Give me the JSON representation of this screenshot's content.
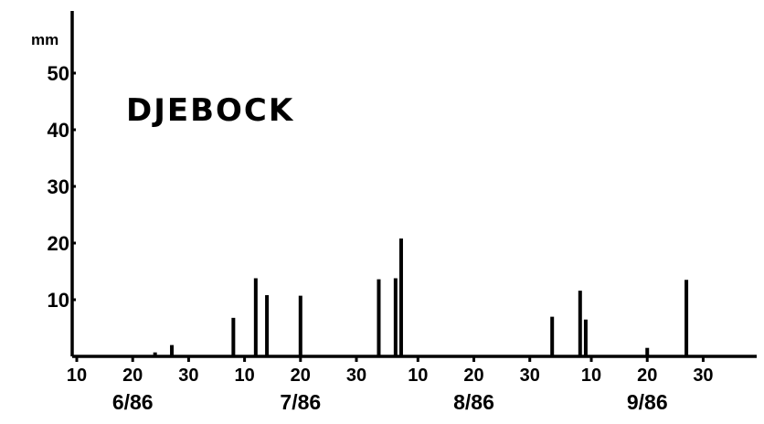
{
  "chart_data": {
    "type": "bar",
    "title": "DJEBOCK",
    "ylabel": "mm",
    "ylim": [
      0,
      55
    ],
    "yticks": [
      10,
      20,
      30,
      40,
      50
    ],
    "grid": false,
    "xticks": [
      {
        "day": 10,
        "month": "6/86",
        "label": "10"
      },
      {
        "day": 20,
        "month": "6/86",
        "label": "20"
      },
      {
        "day": 30,
        "month": "6/86",
        "label": "30"
      },
      {
        "day": 10,
        "month": "7/86",
        "label": "10"
      },
      {
        "day": 20,
        "month": "7/86",
        "label": "20"
      },
      {
        "day": 30,
        "month": "7/86",
        "label": "30"
      },
      {
        "day": 10,
        "month": "8/86",
        "label": "10"
      },
      {
        "day": 20,
        "month": "8/86",
        "label": "20"
      },
      {
        "day": 30,
        "month": "8/86",
        "label": "30"
      },
      {
        "day": 10,
        "month": "9/86",
        "label": "10"
      },
      {
        "day": 20,
        "month": "9/86",
        "label": "20"
      },
      {
        "day": 30,
        "month": "9/86",
        "label": "30"
      }
    ],
    "months": [
      "6/86",
      "7/86",
      "8/86",
      "9/86"
    ],
    "points": [
      {
        "date": "1986-06-24",
        "value": 0.7
      },
      {
        "date": "1986-06-27",
        "value": 2.0
      },
      {
        "date": "1986-07-08",
        "value": 6.8
      },
      {
        "date": "1986-07-12",
        "value": 13.8
      },
      {
        "date": "1986-07-14",
        "value": 10.8
      },
      {
        "date": "1986-07-20",
        "value": 10.7
      },
      {
        "date": "1986-08-03",
        "value": 13.6
      },
      {
        "date": "1986-08-06",
        "value": 13.8
      },
      {
        "date": "1986-08-07",
        "value": 20.8
      },
      {
        "date": "1986-09-03",
        "value": 7.0
      },
      {
        "date": "1986-09-08",
        "value": 11.6
      },
      {
        "date": "1986-09-09",
        "value": 6.5
      },
      {
        "date": "1986-09-20",
        "value": 1.5
      },
      {
        "date": "1986-09-27",
        "value": 13.5
      }
    ]
  }
}
